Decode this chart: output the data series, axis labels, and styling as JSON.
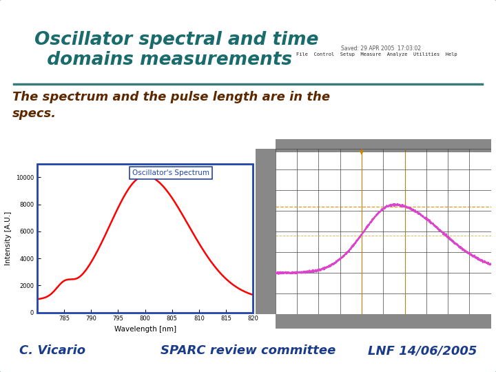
{
  "title_line1": "Oscillator spectral and time",
  "title_line2": "  domains measurements",
  "subtitle": "The spectrum and the pulse length are in the\nspecs.",
  "footer_left": "C. Vicario",
  "footer_center": "SPARC review committee",
  "footer_right": "LNF 14/06/2005",
  "title_color": "#1a6b6b",
  "subtitle_color": "#5c2800",
  "footer_color": "#1a3a8a",
  "bg_color": "#d8d8d8",
  "border_color": "#3a7a7a",
  "line_color": "#3a7a7a",
  "white": "#ffffff",
  "spectrum_label": "Oscillator's Spectrum",
  "spectrum_border_color": "#2244aa",
  "spectrum_label_color": "#2244aa",
  "figsize": [
    7.2,
    5.4
  ],
  "dpi": 100
}
